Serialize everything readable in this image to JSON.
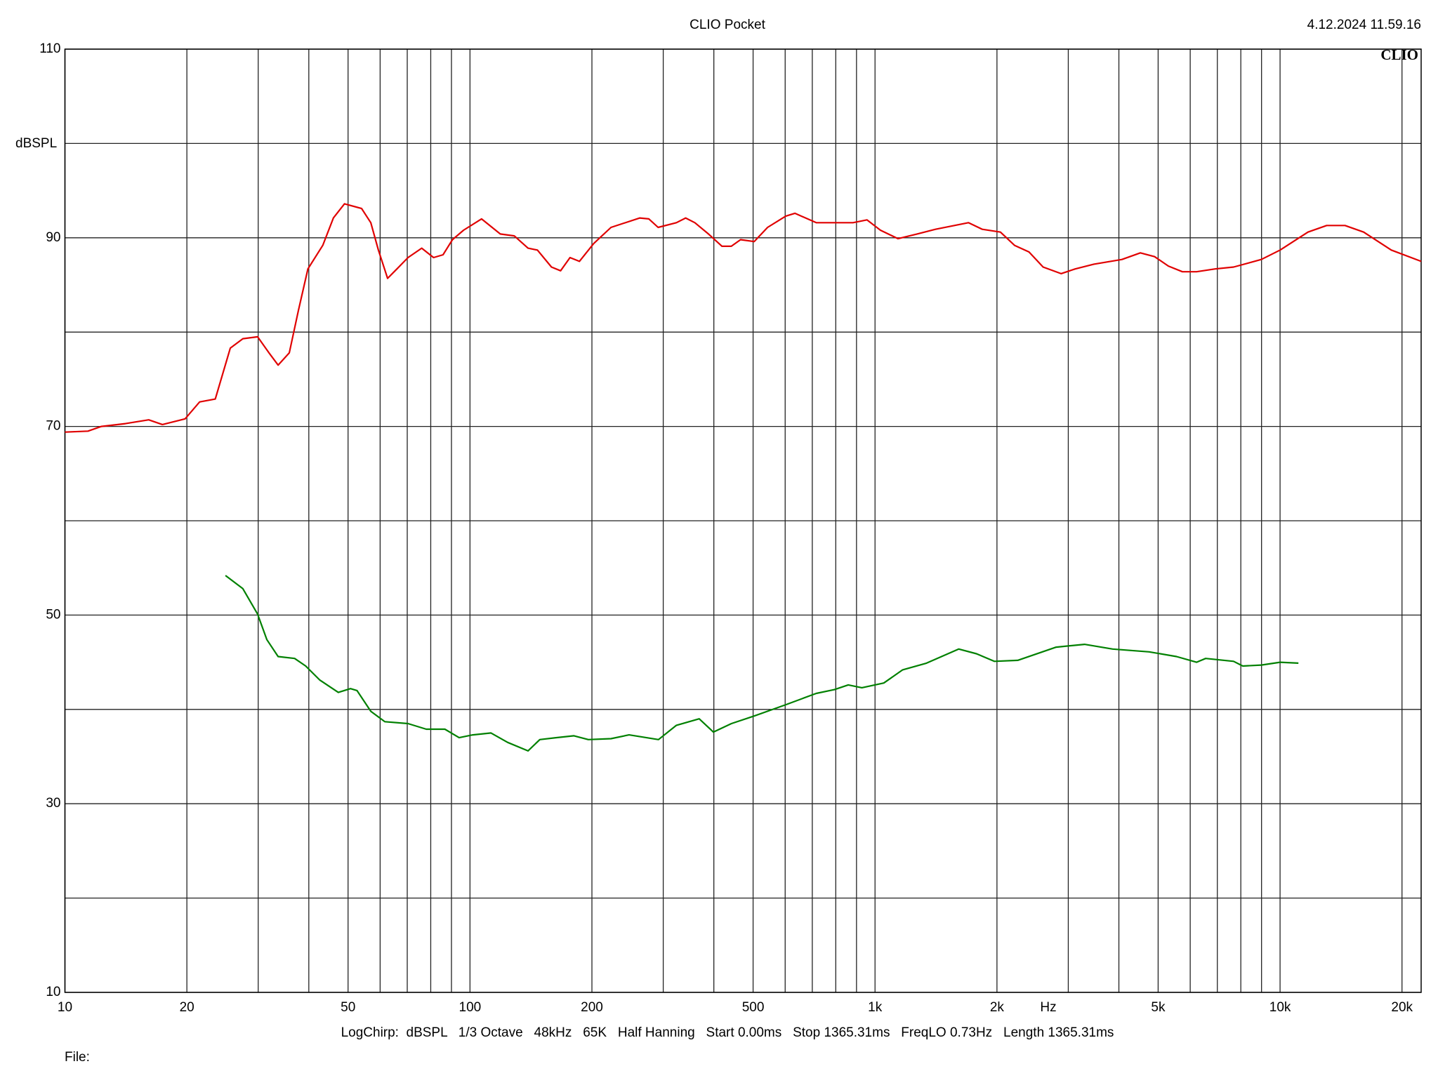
{
  "chart_data": {
    "type": "line",
    "title": "CLIO Pocket",
    "timestamp": "4.12.2024 11.59.16",
    "logo": "CLIO",
    "y_label": "dBSPL",
    "x_label": "Hz",
    "footer": "LogChirp:  dBSPL   1/3 Octave   48kHz   65K   Half Hanning   Start 0.00ms   Stop 1365.31ms   FreqLO 0.73Hz   Length 1365.31ms",
    "file_label": "File:",
    "xscale": "log",
    "xlim": [
      10,
      22300
    ],
    "ylim": [
      10,
      110
    ],
    "xticks": [
      10,
      20,
      50,
      100,
      200,
      500,
      {
        "value": 1000,
        "label": "1k"
      },
      {
        "value": 2000,
        "label": "2k"
      },
      {
        "value": 5000,
        "label": "5k"
      },
      {
        "value": 10000,
        "label": "10k"
      },
      {
        "value": 20000,
        "label": "20k"
      }
    ],
    "x_minor_grid": [
      30,
      40,
      60,
      70,
      80,
      90,
      300,
      400,
      600,
      700,
      800,
      900,
      3000,
      4000,
      6000,
      7000,
      8000,
      9000
    ],
    "yticks": [
      10,
      30,
      50,
      70,
      90,
      110
    ],
    "y_minor_grid": [
      20,
      40,
      60,
      80,
      100
    ],
    "grid": true,
    "series": [
      {
        "color": "#e00000",
        "x": [
          10,
          11.4,
          12.3,
          14.1,
          16.1,
          17.4,
          19.8,
          21.5,
          23.5,
          25.6,
          27.5,
          29.9,
          31.9,
          33.6,
          35.8,
          37.7,
          39.8,
          43.3,
          46,
          49,
          54,
          56.9,
          59.4,
          62.6,
          66,
          70.3,
          76,
          81.3,
          85.8,
          90.5,
          96.4,
          106.8,
          118.8,
          128.6,
          139.1,
          146.7,
          158.9,
          167.4,
          176.6,
          186.3,
          202.1,
          222.9,
          262.6,
          276.4,
          291.4,
          323.2,
          340.8,
          359,
          388,
          419,
          441.7,
          465.6,
          503,
          543,
          602,
          634,
          716,
          794,
          882,
          955,
          1031,
          1140,
          1270,
          1410,
          1570,
          1700,
          1840,
          2040,
          2210,
          2400,
          2600,
          2880,
          3120,
          3470,
          4070,
          4520,
          4900,
          5300,
          5740,
          6220,
          6910,
          7680,
          8990,
          10000,
          11720,
          13030,
          14470,
          16080,
          18820,
          22300
        ],
        "values": [
          69.4,
          69.5,
          70.0,
          70.3,
          70.7,
          70.2,
          70.8,
          72.6,
          72.9,
          78.3,
          79.3,
          79.5,
          77.8,
          76.5,
          77.8,
          82.3,
          86.7,
          89.2,
          92.1,
          93.6,
          93.1,
          91.6,
          88.7,
          85.7,
          86.7,
          87.9,
          88.9,
          87.9,
          88.2,
          89.8,
          90.8,
          92.0,
          90.4,
          90.2,
          88.9,
          88.7,
          86.9,
          86.5,
          87.9,
          87.5,
          89.4,
          91.1,
          92.1,
          92.0,
          91.1,
          91.6,
          92.1,
          91.6,
          90.4,
          89.1,
          89.1,
          89.8,
          89.6,
          91.1,
          92.3,
          92.6,
          91.6,
          91.6,
          91.6,
          91.9,
          90.8,
          89.9,
          90.4,
          90.9,
          91.3,
          91.6,
          90.9,
          90.6,
          89.2,
          88.5,
          86.9,
          86.2,
          86.7,
          87.2,
          87.7,
          88.4,
          88.0,
          87.0,
          86.4,
          86.4,
          86.7,
          86.9,
          87.7,
          88.7,
          90.6,
          91.3,
          91.3,
          90.6,
          88.7,
          87.5
        ]
      },
      {
        "color": "#008000",
        "x": [
          24.9,
          27.5,
          29.9,
          31.5,
          33.6,
          36.9,
          39.3,
          42.6,
          47.3,
          50.7,
          52.6,
          56.9,
          61.6,
          70.3,
          78,
          86.7,
          94,
          101.6,
          112.7,
          123.9,
          139.1,
          148.7,
          163,
          180.6,
          196,
          222.9,
          247,
          292,
          323,
          368,
          399,
          442,
          503,
          602,
          716,
          794,
          859,
          928,
          1051,
          1170,
          1340,
          1610,
          1780,
          1970,
          2250,
          2800,
          3290,
          3860,
          4750,
          5550,
          6220,
          6550,
          7680,
          8090,
          8990,
          10000,
          11100
        ],
        "values": [
          54.2,
          52.8,
          50.1,
          47.4,
          45.6,
          45.4,
          44.6,
          43.1,
          41.8,
          42.2,
          42.0,
          39.8,
          38.7,
          38.5,
          37.9,
          37.9,
          37.0,
          37.3,
          37.5,
          36.5,
          35.6,
          36.8,
          37.0,
          37.2,
          36.8,
          36.9,
          37.3,
          36.8,
          38.3,
          39.0,
          37.6,
          38.5,
          39.3,
          40.5,
          41.7,
          42.1,
          42.6,
          42.3,
          42.8,
          44.2,
          44.9,
          46.4,
          45.9,
          45.1,
          45.2,
          46.6,
          46.9,
          46.4,
          46.1,
          45.6,
          45.0,
          45.4,
          45.1,
          44.6,
          44.7,
          45.0,
          44.9
        ]
      }
    ]
  }
}
